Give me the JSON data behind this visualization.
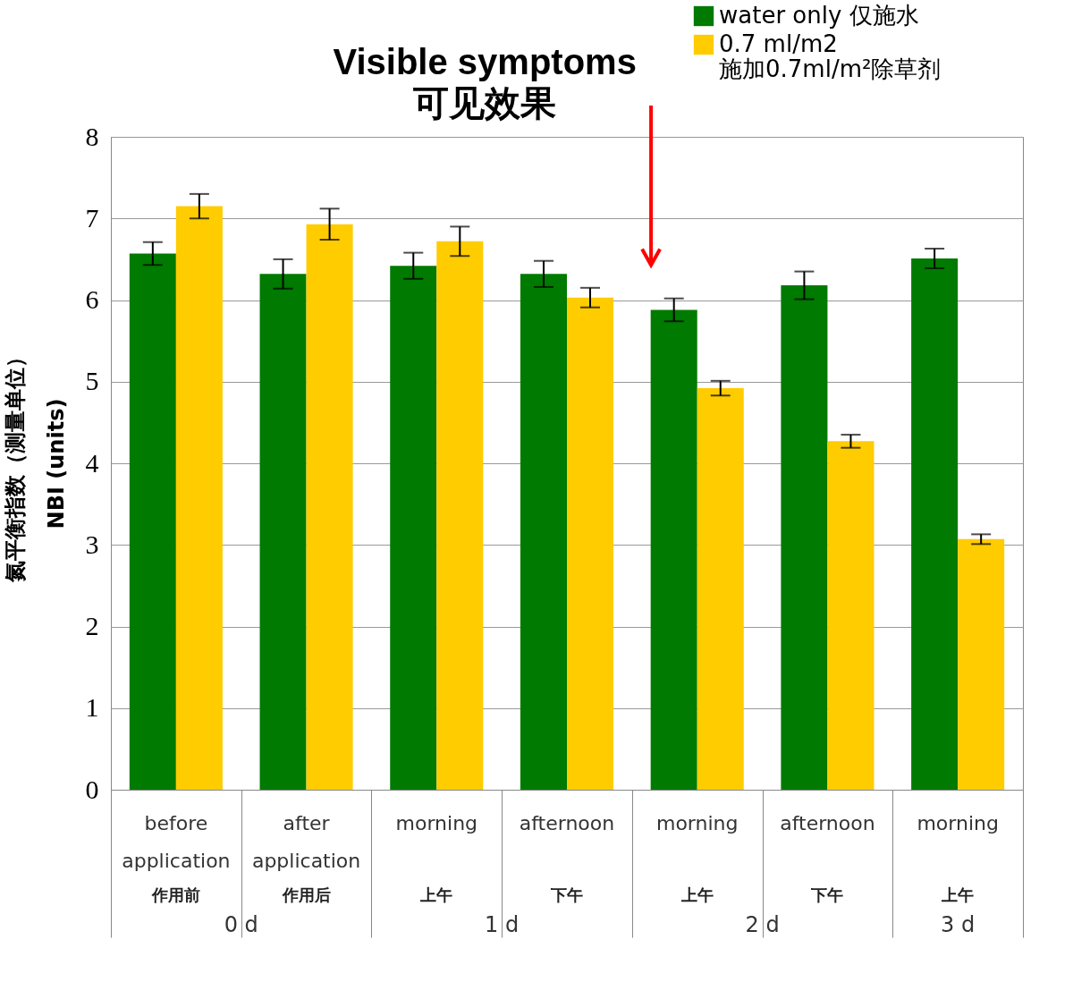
{
  "chart_data": {
    "type": "bar",
    "annotations": [
      "Visible symptoms\n可见效果",
      "0 d",
      "1 d",
      "2 d",
      "3 d"
    ],
    "ylabel": "氮平衡指数（测量单位）\nNBI (units)",
    "categories": [
      "before\napplication\n作用前",
      "after\napplication\n作用后",
      "morning\n上午",
      "afternoon\n下午",
      "morning\n上午",
      "afternoon\n下午",
      "morning\n上午"
    ],
    "series": [
      {
        "name": "water only 仅施水",
        "color": "#007a00",
        "values": [
          6.57,
          6.32,
          6.42,
          6.32,
          5.88,
          6.18,
          6.51
        ],
        "errors": [
          0.14,
          0.18,
          0.16,
          0.16,
          0.14,
          0.17,
          0.12
        ]
      },
      {
        "name": "0.7 ml/m2\n施加0.7ml/m²除草剂",
        "color": "#ffcc00",
        "values": [
          7.15,
          6.93,
          6.72,
          6.03,
          4.92,
          4.27,
          3.07
        ],
        "errors": [
          0.15,
          0.19,
          0.18,
          0.12,
          0.09,
          0.08,
          0.06
        ]
      }
    ],
    "ylim": [
      0,
      8
    ],
    "yticks": [
      0,
      1,
      2,
      3,
      4,
      5,
      6,
      7,
      8
    ],
    "grid": "y",
    "legend": "top right"
  }
}
